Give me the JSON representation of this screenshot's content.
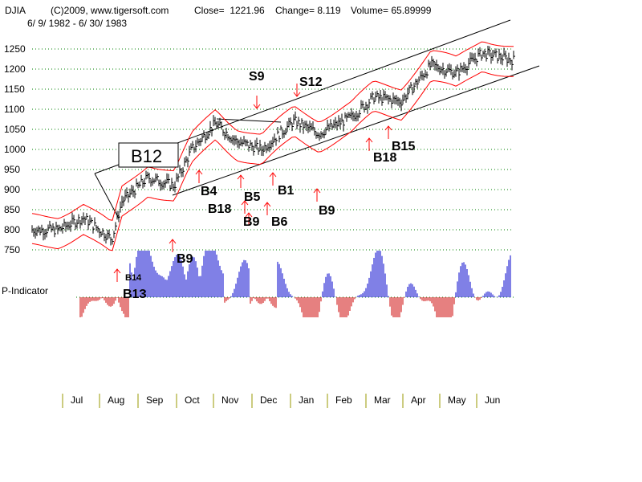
{
  "header": {
    "ticker": "DJIA",
    "copyright": "(C)2009, www.tigersoft.com",
    "close": "Close=  1221.96",
    "change": "Change= 8.119",
    "volume": "Volume= 65.89999",
    "date_range": "6/ 9/ 1982 - 6/ 30/ 1983"
  },
  "chart_data": {
    "type": "line",
    "title": "DJIA",
    "ylim": [
      750,
      1250
    ],
    "y_ticks": [
      "1250",
      "1200",
      "1150",
      "1100",
      "1050",
      "1000",
      "950",
      "900",
      "850",
      "800",
      "750"
    ],
    "x_months": [
      "Jul",
      "Aug",
      "Sep",
      "Oct",
      "Nov",
      "Dec",
      "Jan",
      "Feb",
      "Mar",
      "Apr",
      "May",
      "Jun"
    ],
    "grid": true,
    "indicator_label": "P-Indicator",
    "price_series": [
      {
        "date": "1982-06-09",
        "close": 800
      },
      {
        "date": "1982-06-30",
        "close": 800
      },
      {
        "date": "1982-07-20",
        "close": 830
      },
      {
        "date": "1982-08-12",
        "close": 777
      },
      {
        "date": "1982-08-20",
        "close": 870
      },
      {
        "date": "1982-09-10",
        "close": 930
      },
      {
        "date": "1982-10-01",
        "close": 910
      },
      {
        "date": "1982-10-15",
        "close": 1000
      },
      {
        "date": "1982-11-03",
        "close": 1065
      },
      {
        "date": "1982-11-20",
        "close": 1020
      },
      {
        "date": "1982-12-10",
        "close": 1000
      },
      {
        "date": "1983-01-05",
        "close": 1070
      },
      {
        "date": "1983-01-25",
        "close": 1040
      },
      {
        "date": "1983-02-20",
        "close": 1080
      },
      {
        "date": "1983-03-10",
        "close": 1130
      },
      {
        "date": "1983-04-01",
        "close": 1120
      },
      {
        "date": "1983-04-25",
        "close": 1210
      },
      {
        "date": "1983-05-15",
        "close": 1190
      },
      {
        "date": "1983-06-05",
        "close": 1240
      },
      {
        "date": "1983-06-30",
        "close": 1222
      }
    ],
    "signals": [
      {
        "label": "B12",
        "type": "buy",
        "boxed": true
      },
      {
        "label": "S9",
        "type": "sell"
      },
      {
        "label": "S12",
        "type": "sell"
      },
      {
        "label": "B4",
        "type": "buy"
      },
      {
        "label": "B18",
        "type": "buy"
      },
      {
        "label": "B5",
        "type": "buy"
      },
      {
        "label": "B9",
        "type": "buy"
      },
      {
        "label": "B6",
        "type": "buy"
      },
      {
        "label": "B1",
        "type": "buy"
      },
      {
        "label": "B9",
        "type": "buy"
      },
      {
        "label": "B18",
        "type": "buy"
      },
      {
        "label": "B15",
        "type": "buy"
      },
      {
        "label": "B9",
        "type": "buy"
      },
      {
        "label": "B13",
        "type": "buy"
      },
      {
        "label": "B14",
        "type": "buy"
      }
    ]
  },
  "colors": {
    "price": "#000000",
    "bands": "#ff0000",
    "channel": "#000000",
    "grid": "#008000",
    "indicator_positive": "#0000cc",
    "indicator_negative": "#cc0000",
    "axis_tick": "#999900"
  }
}
